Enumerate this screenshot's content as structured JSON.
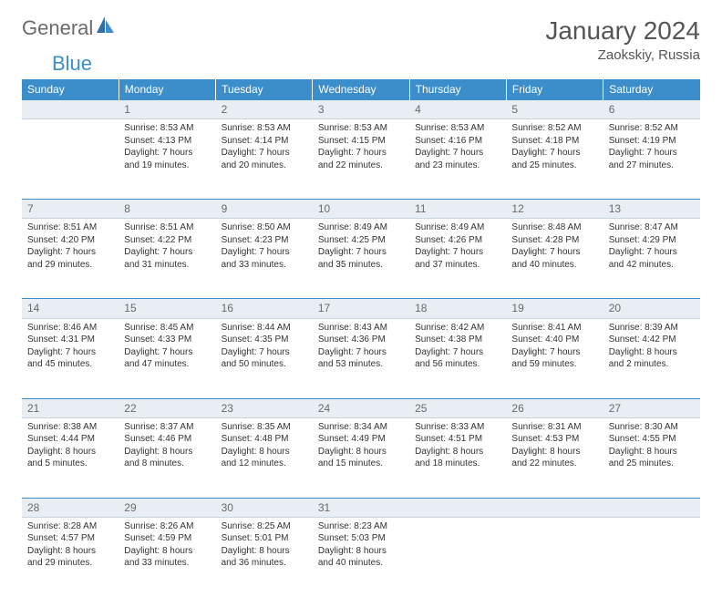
{
  "logo": {
    "part1": "General",
    "part2": "Blue"
  },
  "title": "January 2024",
  "location": "Zaokskiy, Russia",
  "headers": [
    "Sunday",
    "Monday",
    "Tuesday",
    "Wednesday",
    "Thursday",
    "Friday",
    "Saturday"
  ],
  "colors": {
    "header_bg": "#3c8ecb",
    "header_fg": "#ffffff",
    "daynum_bg": "#e8eef3",
    "daynum_fg": "#6a6a6a",
    "text": "#333333",
    "border_top": "#3c8ecb",
    "logo_gray": "#6a6a6a",
    "logo_blue": "#3c8ecb"
  },
  "weeks": [
    {
      "nums": [
        "",
        "1",
        "2",
        "3",
        "4",
        "5",
        "6"
      ],
      "cells": [
        null,
        {
          "sunrise": "Sunrise: 8:53 AM",
          "sunset": "Sunset: 4:13 PM",
          "day1": "Daylight: 7 hours",
          "day2": "and 19 minutes."
        },
        {
          "sunrise": "Sunrise: 8:53 AM",
          "sunset": "Sunset: 4:14 PM",
          "day1": "Daylight: 7 hours",
          "day2": "and 20 minutes."
        },
        {
          "sunrise": "Sunrise: 8:53 AM",
          "sunset": "Sunset: 4:15 PM",
          "day1": "Daylight: 7 hours",
          "day2": "and 22 minutes."
        },
        {
          "sunrise": "Sunrise: 8:53 AM",
          "sunset": "Sunset: 4:16 PM",
          "day1": "Daylight: 7 hours",
          "day2": "and 23 minutes."
        },
        {
          "sunrise": "Sunrise: 8:52 AM",
          "sunset": "Sunset: 4:18 PM",
          "day1": "Daylight: 7 hours",
          "day2": "and 25 minutes."
        },
        {
          "sunrise": "Sunrise: 8:52 AM",
          "sunset": "Sunset: 4:19 PM",
          "day1": "Daylight: 7 hours",
          "day2": "and 27 minutes."
        }
      ]
    },
    {
      "nums": [
        "7",
        "8",
        "9",
        "10",
        "11",
        "12",
        "13"
      ],
      "cells": [
        {
          "sunrise": "Sunrise: 8:51 AM",
          "sunset": "Sunset: 4:20 PM",
          "day1": "Daylight: 7 hours",
          "day2": "and 29 minutes."
        },
        {
          "sunrise": "Sunrise: 8:51 AM",
          "sunset": "Sunset: 4:22 PM",
          "day1": "Daylight: 7 hours",
          "day2": "and 31 minutes."
        },
        {
          "sunrise": "Sunrise: 8:50 AM",
          "sunset": "Sunset: 4:23 PM",
          "day1": "Daylight: 7 hours",
          "day2": "and 33 minutes."
        },
        {
          "sunrise": "Sunrise: 8:49 AM",
          "sunset": "Sunset: 4:25 PM",
          "day1": "Daylight: 7 hours",
          "day2": "and 35 minutes."
        },
        {
          "sunrise": "Sunrise: 8:49 AM",
          "sunset": "Sunset: 4:26 PM",
          "day1": "Daylight: 7 hours",
          "day2": "and 37 minutes."
        },
        {
          "sunrise": "Sunrise: 8:48 AM",
          "sunset": "Sunset: 4:28 PM",
          "day1": "Daylight: 7 hours",
          "day2": "and 40 minutes."
        },
        {
          "sunrise": "Sunrise: 8:47 AM",
          "sunset": "Sunset: 4:29 PM",
          "day1": "Daylight: 7 hours",
          "day2": "and 42 minutes."
        }
      ]
    },
    {
      "nums": [
        "14",
        "15",
        "16",
        "17",
        "18",
        "19",
        "20"
      ],
      "cells": [
        {
          "sunrise": "Sunrise: 8:46 AM",
          "sunset": "Sunset: 4:31 PM",
          "day1": "Daylight: 7 hours",
          "day2": "and 45 minutes."
        },
        {
          "sunrise": "Sunrise: 8:45 AM",
          "sunset": "Sunset: 4:33 PM",
          "day1": "Daylight: 7 hours",
          "day2": "and 47 minutes."
        },
        {
          "sunrise": "Sunrise: 8:44 AM",
          "sunset": "Sunset: 4:35 PM",
          "day1": "Daylight: 7 hours",
          "day2": "and 50 minutes."
        },
        {
          "sunrise": "Sunrise: 8:43 AM",
          "sunset": "Sunset: 4:36 PM",
          "day1": "Daylight: 7 hours",
          "day2": "and 53 minutes."
        },
        {
          "sunrise": "Sunrise: 8:42 AM",
          "sunset": "Sunset: 4:38 PM",
          "day1": "Daylight: 7 hours",
          "day2": "and 56 minutes."
        },
        {
          "sunrise": "Sunrise: 8:41 AM",
          "sunset": "Sunset: 4:40 PM",
          "day1": "Daylight: 7 hours",
          "day2": "and 59 minutes."
        },
        {
          "sunrise": "Sunrise: 8:39 AM",
          "sunset": "Sunset: 4:42 PM",
          "day1": "Daylight: 8 hours",
          "day2": "and 2 minutes."
        }
      ]
    },
    {
      "nums": [
        "21",
        "22",
        "23",
        "24",
        "25",
        "26",
        "27"
      ],
      "cells": [
        {
          "sunrise": "Sunrise: 8:38 AM",
          "sunset": "Sunset: 4:44 PM",
          "day1": "Daylight: 8 hours",
          "day2": "and 5 minutes."
        },
        {
          "sunrise": "Sunrise: 8:37 AM",
          "sunset": "Sunset: 4:46 PM",
          "day1": "Daylight: 8 hours",
          "day2": "and 8 minutes."
        },
        {
          "sunrise": "Sunrise: 8:35 AM",
          "sunset": "Sunset: 4:48 PM",
          "day1": "Daylight: 8 hours",
          "day2": "and 12 minutes."
        },
        {
          "sunrise": "Sunrise: 8:34 AM",
          "sunset": "Sunset: 4:49 PM",
          "day1": "Daylight: 8 hours",
          "day2": "and 15 minutes."
        },
        {
          "sunrise": "Sunrise: 8:33 AM",
          "sunset": "Sunset: 4:51 PM",
          "day1": "Daylight: 8 hours",
          "day2": "and 18 minutes."
        },
        {
          "sunrise": "Sunrise: 8:31 AM",
          "sunset": "Sunset: 4:53 PM",
          "day1": "Daylight: 8 hours",
          "day2": "and 22 minutes."
        },
        {
          "sunrise": "Sunrise: 8:30 AM",
          "sunset": "Sunset: 4:55 PM",
          "day1": "Daylight: 8 hours",
          "day2": "and 25 minutes."
        }
      ]
    },
    {
      "nums": [
        "28",
        "29",
        "30",
        "31",
        "",
        "",
        ""
      ],
      "cells": [
        {
          "sunrise": "Sunrise: 8:28 AM",
          "sunset": "Sunset: 4:57 PM",
          "day1": "Daylight: 8 hours",
          "day2": "and 29 minutes."
        },
        {
          "sunrise": "Sunrise: 8:26 AM",
          "sunset": "Sunset: 4:59 PM",
          "day1": "Daylight: 8 hours",
          "day2": "and 33 minutes."
        },
        {
          "sunrise": "Sunrise: 8:25 AM",
          "sunset": "Sunset: 5:01 PM",
          "day1": "Daylight: 8 hours",
          "day2": "and 36 minutes."
        },
        {
          "sunrise": "Sunrise: 8:23 AM",
          "sunset": "Sunset: 5:03 PM",
          "day1": "Daylight: 8 hours",
          "day2": "and 40 minutes."
        },
        null,
        null,
        null
      ]
    }
  ]
}
